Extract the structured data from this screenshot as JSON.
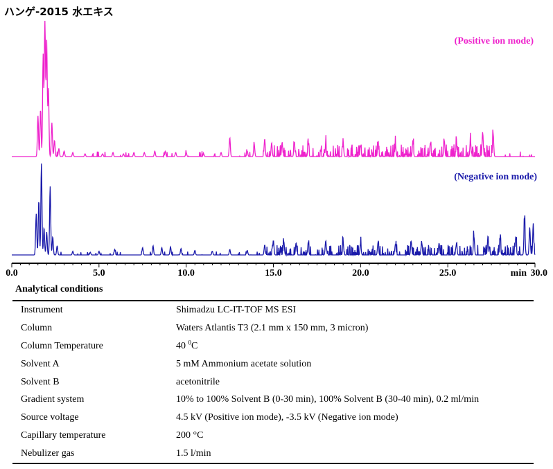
{
  "title": "ハンゲ-2015 水エキス",
  "chart_data": {
    "type": "line",
    "xlabel": "min",
    "xlim": [
      0,
      30
    ],
    "xticks": [
      "0.0",
      "5.0",
      "10.0",
      "15.0",
      "20.0",
      "25.0",
      "30.0"
    ],
    "colors": {
      "positive": "#ee22cc",
      "negative": "#1a1aaa",
      "axis": "#000000"
    },
    "series": [
      {
        "name": "(Positive ion mode)",
        "color": "#ee22cc",
        "peaks": [
          [
            1.5,
            0.3
          ],
          [
            1.65,
            0.35
          ],
          [
            1.8,
            0.75
          ],
          [
            1.9,
            1.0
          ],
          [
            2.0,
            0.85
          ],
          [
            2.1,
            0.5
          ],
          [
            2.3,
            0.25
          ],
          [
            2.45,
            0.12
          ],
          [
            2.7,
            0.06
          ],
          [
            3.0,
            0.04
          ],
          [
            3.5,
            0.03
          ],
          [
            4.2,
            0.02
          ],
          [
            5.2,
            0.02
          ],
          [
            5.8,
            0.03
          ],
          [
            6.4,
            0.02
          ],
          [
            7.0,
            0.03
          ],
          [
            7.6,
            0.03
          ],
          [
            8.2,
            0.04
          ],
          [
            8.8,
            0.04
          ],
          [
            9.4,
            0.03
          ],
          [
            10.0,
            0.03
          ],
          [
            11.0,
            0.02
          ],
          [
            12.0,
            0.03
          ],
          [
            12.5,
            0.14
          ],
          [
            13.5,
            0.04
          ],
          [
            13.9,
            0.09
          ],
          [
            14.5,
            0.13
          ],
          [
            14.9,
            0.1
          ],
          [
            15.5,
            0.1
          ],
          [
            16.2,
            0.11
          ],
          [
            17.0,
            0.09
          ],
          [
            18.0,
            0.08
          ],
          [
            19.0,
            0.1
          ],
          [
            20.0,
            0.08
          ],
          [
            21.0,
            0.09
          ],
          [
            22.0,
            0.09
          ],
          [
            23.0,
            0.1
          ],
          [
            24.0,
            0.1
          ],
          [
            24.8,
            0.12
          ],
          [
            25.5,
            0.09
          ],
          [
            26.3,
            0.12
          ],
          [
            27.0,
            0.18
          ],
          [
            27.6,
            0.17
          ]
        ],
        "noise_range": [
          15.0,
          27.8
        ]
      },
      {
        "name": "(Negative ion mode)",
        "color": "#1a1aaa",
        "peaks": [
          [
            1.4,
            0.45
          ],
          [
            1.55,
            0.6
          ],
          [
            1.7,
            1.0
          ],
          [
            1.85,
            0.3
          ],
          [
            2.0,
            0.25
          ],
          [
            2.2,
            0.75
          ],
          [
            2.35,
            0.2
          ],
          [
            2.6,
            0.1
          ],
          [
            3.5,
            0.04
          ],
          [
            4.5,
            0.03
          ],
          [
            5.0,
            0.04
          ],
          [
            5.9,
            0.06
          ],
          [
            7.5,
            0.08
          ],
          [
            8.1,
            0.1
          ],
          [
            8.6,
            0.08
          ],
          [
            9.1,
            0.09
          ],
          [
            9.7,
            0.07
          ],
          [
            10.5,
            0.05
          ],
          [
            11.5,
            0.04
          ],
          [
            12.5,
            0.06
          ],
          [
            13.5,
            0.05
          ],
          [
            14.5,
            0.11
          ],
          [
            15.0,
            0.16
          ],
          [
            15.6,
            0.14
          ],
          [
            16.3,
            0.13
          ],
          [
            17.0,
            0.12
          ],
          [
            18.0,
            0.15
          ],
          [
            19.0,
            0.13
          ],
          [
            20.0,
            0.12
          ],
          [
            21.0,
            0.13
          ],
          [
            22.0,
            0.12
          ],
          [
            22.9,
            0.15
          ],
          [
            23.5,
            0.14
          ],
          [
            24.5,
            0.13
          ],
          [
            25.5,
            0.13
          ],
          [
            26.5,
            0.2
          ],
          [
            27.3,
            0.18
          ],
          [
            28.0,
            0.17
          ],
          [
            28.9,
            0.2
          ],
          [
            29.4,
            0.4
          ],
          [
            29.7,
            0.3
          ],
          [
            29.9,
            0.3
          ]
        ],
        "noise_range": [
          14.5,
          30.0
        ]
      }
    ]
  },
  "conditions": {
    "title": "Analytical conditions",
    "rows": [
      {
        "key": "Instrument",
        "value": "Shimadzu LC-IT-TOF MS ESI"
      },
      {
        "key": "Column",
        "value": "Waters Atlantis T3 (2.1 mm x 150 mm, 3 micron)"
      },
      {
        "key": "Column Temperature",
        "value_pre": "40 ",
        "value_sup": "0",
        "value_post": "C"
      },
      {
        "key": "Solvent A",
        "value": "5 mM Ammonium acetate solution"
      },
      {
        "key": "Solvent B",
        "value": "acetonitrile"
      },
      {
        "key": "Gradient system",
        "value": "10% to 100% Solvent B (0-30 min), 100% Solvent B (30-40 min), 0.2 ml/min"
      },
      {
        "key": "Source voltage",
        "value": "4.5 kV (Positive ion mode), -3.5 kV (Negative ion mode)"
      },
      {
        "key": "Capillary temperature",
        "value": "200 °C"
      },
      {
        "key": "Nebulizer gas",
        "value": "1.5 l/min"
      }
    ]
  }
}
